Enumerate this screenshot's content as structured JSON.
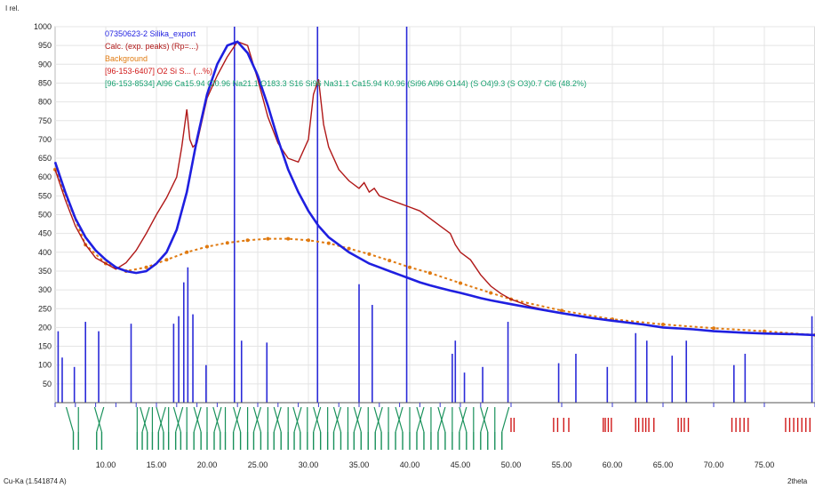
{
  "chart_data": {
    "type": "line",
    "y_unit_label": "I rel.",
    "x_unit_label": "2theta",
    "wavelength_label": "Cu-Ka (1.541874 A)",
    "xlim": [
      5.0,
      80.0
    ],
    "ylim": [
      0,
      1000
    ],
    "x_ticks": [
      "10.00",
      "15.00",
      "20.00",
      "25.00",
      "30.00",
      "35.00",
      "40.00",
      "45.00",
      "50.00",
      "55.00",
      "60.00",
      "65.00",
      "70.00",
      "75.00"
    ],
    "y_ticks": [
      "50",
      "100",
      "150",
      "200",
      "250",
      "300",
      "350",
      "400",
      "450",
      "500",
      "550",
      "600",
      "650",
      "700",
      "750",
      "800",
      "850",
      "900",
      "950",
      "1000"
    ],
    "grid": true,
    "legend_position": "top-left",
    "series": [
      {
        "name": "07350623-2 Silika_export",
        "color": "#1f1fe0",
        "x": [
          5,
          6,
          7,
          8,
          9,
          10,
          11,
          12,
          13,
          14,
          15,
          16,
          17,
          18,
          19,
          20,
          21,
          22,
          23,
          24,
          25,
          26,
          27,
          28,
          29,
          30,
          31,
          32,
          33,
          34,
          35,
          36,
          37,
          38,
          39,
          40,
          41,
          42,
          43,
          44,
          45,
          46,
          47,
          48,
          50,
          52,
          55,
          58,
          60,
          63,
          65,
          68,
          70,
          73,
          75,
          78,
          80
        ],
        "y": [
          640,
          560,
          490,
          440,
          405,
          380,
          360,
          350,
          345,
          350,
          370,
          400,
          460,
          560,
          700,
          820,
          900,
          950,
          960,
          930,
          870,
          790,
          700,
          620,
          560,
          510,
          470,
          440,
          420,
          400,
          385,
          370,
          360,
          350,
          340,
          330,
          320,
          312,
          305,
          298,
          292,
          285,
          278,
          272,
          262,
          252,
          238,
          225,
          218,
          208,
          200,
          195,
          190,
          186,
          184,
          182,
          180
        ]
      },
      {
        "name": "Calc. (exp. peaks) (Rp=...)",
        "color": "#b01818",
        "x": [
          5,
          6,
          7,
          8,
          9,
          10,
          11,
          12,
          13,
          14,
          15,
          16,
          17,
          17.5,
          18,
          18.3,
          18.6,
          19,
          20,
          21,
          22,
          23,
          24,
          25,
          26,
          27,
          28,
          29,
          30,
          30.5,
          31,
          31.5,
          32,
          33,
          34,
          35,
          35.5,
          36,
          36.5,
          37,
          38,
          39,
          40,
          41,
          42,
          43,
          44,
          44.5,
          45,
          46,
          47,
          48,
          49,
          50,
          52,
          55,
          58,
          60,
          63,
          65,
          68,
          70,
          73,
          75,
          78,
          80
        ],
        "y": [
          620,
          540,
          470,
          420,
          385,
          370,
          355,
          372,
          405,
          450,
          500,
          545,
          600,
          680,
          780,
          700,
          680,
          690,
          810,
          870,
          920,
          960,
          950,
          860,
          760,
          690,
          650,
          640,
          700,
          820,
          860,
          740,
          680,
          620,
          590,
          570,
          585,
          560,
          570,
          550,
          540,
          530,
          520,
          510,
          490,
          470,
          450,
          420,
          400,
          380,
          340,
          310,
          290,
          275,
          255,
          238,
          226,
          218,
          208,
          200,
          195,
          190,
          186,
          184,
          182,
          180
        ]
      },
      {
        "name": "Background",
        "color": "#e07a10",
        "x": [
          5,
          8,
          10,
          12,
          14,
          16,
          18,
          20,
          22,
          24,
          26,
          28,
          30,
          32,
          34,
          36,
          38,
          40,
          42,
          45,
          48,
          50,
          55,
          60,
          65,
          70,
          75,
          80
        ],
        "y": [
          620,
          420,
          370,
          350,
          360,
          380,
          400,
          415,
          425,
          432,
          436,
          436,
          432,
          424,
          410,
          395,
          378,
          360,
          345,
          318,
          292,
          275,
          245,
          222,
          208,
          198,
          190,
          180
        ]
      }
    ],
    "legend_entries": [
      {
        "label": "07350623-2 Silika_export",
        "color": "#1f1fe0"
      },
      {
        "label": "Calc. (exp. peaks) (Rp=...)",
        "color": "#b01818"
      },
      {
        "label": "Background",
        "color": "#e07a10"
      },
      {
        "label": "[96-153-6407] O2 Si S... (...%)",
        "color": "#d01818"
      },
      {
        "label": "[96-153-8534] Al96 Ca15.94 Cl0.96 Na21.1 O183.3 S16 Si96 Na31.1 Ca15.94 K0.96 (Si96 Al96 O144) (S O4)9.3 (S O3)0.7 Cl6 (48.2%)",
        "color": "#18a070"
      }
    ],
    "stick_patterns": [
      {
        "name": "blue reflections",
        "color": "#2a2ad8",
        "positions": [
          5.3,
          5.7,
          6.9,
          8.0,
          9.3,
          12.5,
          16.7,
          17.2,
          17.7,
          18.1,
          18.6,
          19.9,
          22.7,
          23.4,
          25.9,
          30.9,
          35.0,
          36.3,
          39.7,
          44.2,
          44.5,
          45.4,
          47.2,
          49.7,
          54.7,
          56.4,
          59.5,
          62.3,
          63.4,
          65.9,
          67.3,
          72.0,
          73.1,
          79.7
        ],
        "intensities": [
          190,
          120,
          95,
          215,
          190,
          210,
          210,
          230,
          320,
          360,
          235,
          100,
          1000,
          165,
          160,
          1000,
          315,
          260,
          1000,
          130,
          165,
          80,
          95,
          215,
          105,
          130,
          95,
          185,
          165,
          125,
          165,
          100,
          130,
          230
        ]
      },
      {
        "name": "red reflections",
        "color": "#d01818",
        "positions": [
          50.0,
          50.3,
          54.2,
          54.6,
          55.2,
          55.7,
          59.1,
          59.3,
          59.6,
          59.9,
          62.3,
          62.6,
          63.0,
          63.3,
          63.6,
          64.1,
          66.5,
          66.8,
          67.1,
          67.5,
          71.8,
          72.2,
          72.6,
          73.0,
          73.4,
          77.1,
          77.5,
          77.9,
          78.3,
          78.7,
          79.1,
          79.5
        ]
      },
      {
        "name": "green reflections",
        "color": "#18905a",
        "positions": [
          6.8,
          7.3,
          9.1,
          9.6,
          13.1,
          13.6,
          14.1,
          14.6,
          15.2,
          15.7,
          16.2,
          16.9,
          17.4,
          18.0,
          18.7,
          19.4,
          20.0,
          20.7,
          21.3,
          21.8,
          22.6,
          23.3,
          24.0,
          24.6,
          25.3,
          26.0,
          26.6,
          27.3,
          28.0,
          28.6,
          29.2,
          29.9,
          30.5,
          31.2,
          31.9,
          32.5,
          33.2,
          33.9,
          34.5,
          35.2,
          35.9,
          36.6,
          37.2,
          37.9,
          38.6,
          39.3,
          40.0,
          40.7,
          41.4,
          42.1,
          42.8,
          43.5,
          44.2,
          44.9,
          45.6,
          46.3,
          47.0,
          47.7,
          48.4,
          49.1
        ]
      }
    ]
  }
}
